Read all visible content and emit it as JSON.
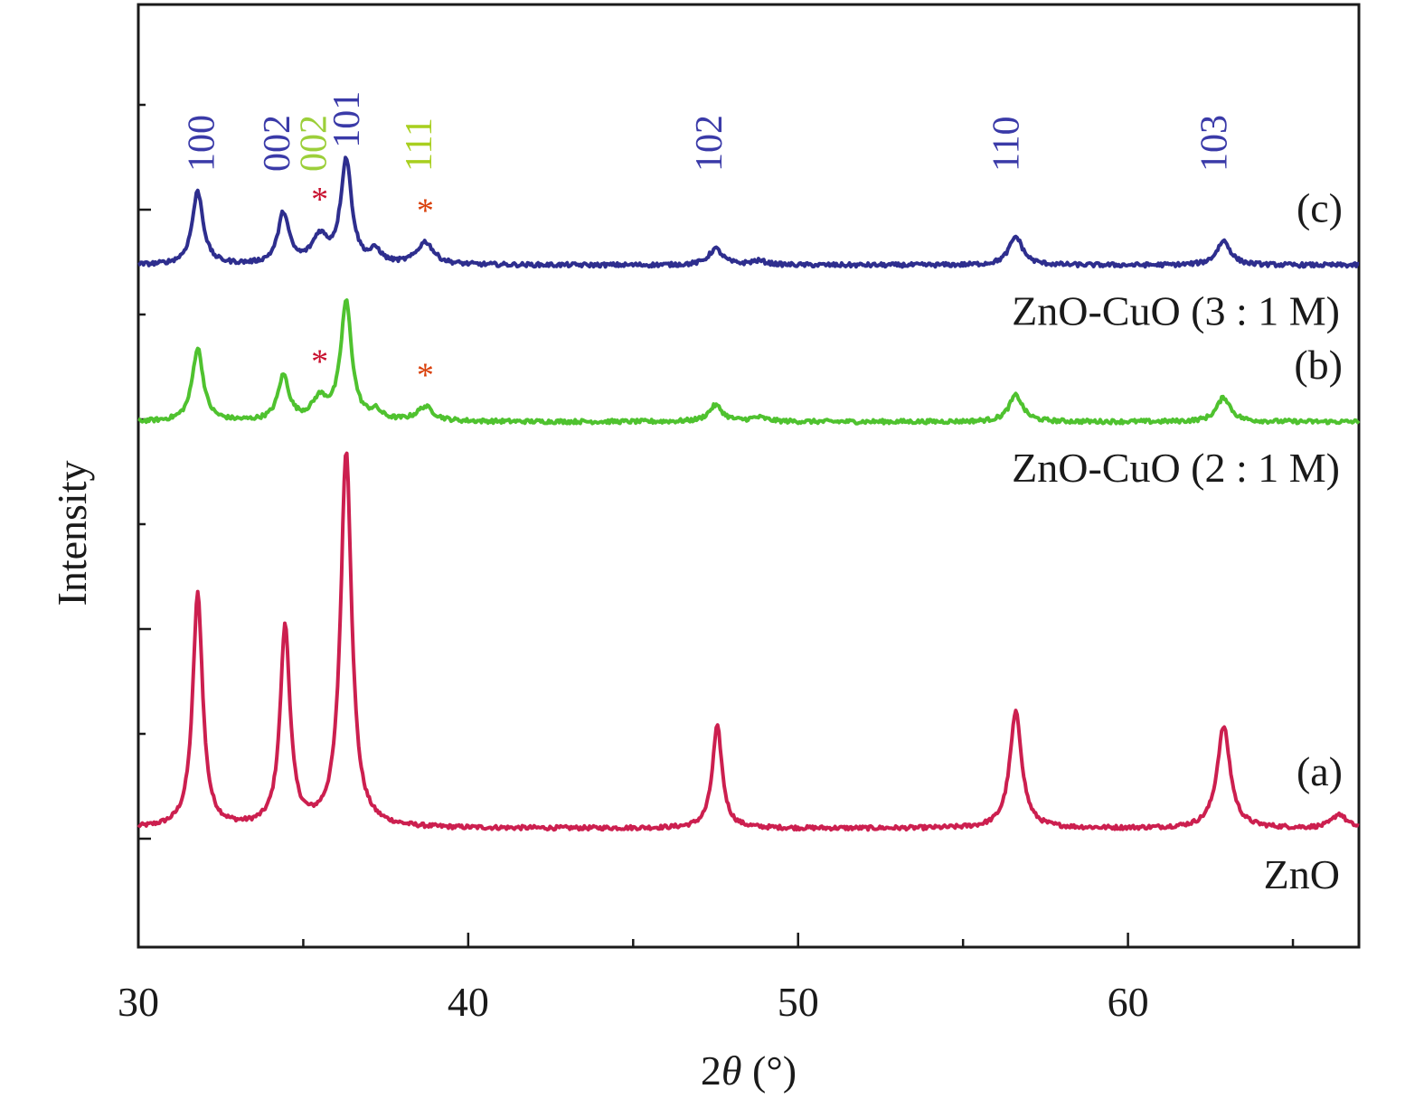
{
  "chart_data": {
    "type": "line",
    "xlabel_prefix": "2",
    "xlabel_symbol": "θ",
    "xlabel_unit": " (°)",
    "ylabel": "Intensity",
    "xlim": [
      30,
      67
    ],
    "x_ticks": [
      30,
      40,
      50,
      60
    ],
    "series": [
      {
        "name": "ZnO",
        "tag": "(a)",
        "color": "#cc1f4f",
        "offset": 0,
        "baseline": 0.05,
        "peaks": [
          [
            31.8,
            1.15,
            0.18
          ],
          [
            34.45,
            0.98,
            0.18
          ],
          [
            36.3,
            1.85,
            0.2
          ],
          [
            47.55,
            0.5,
            0.18
          ],
          [
            56.6,
            0.57,
            0.22
          ],
          [
            62.9,
            0.5,
            0.24
          ],
          [
            66.4,
            0.07,
            0.25
          ]
        ]
      },
      {
        "name": "ZnO-CuO (2 : 1 M)",
        "tag": "(b)",
        "color": "#4fc22f",
        "offset": 2.0,
        "baseline": 0.05,
        "peaks": [
          [
            31.8,
            0.36,
            0.2
          ],
          [
            34.4,
            0.22,
            0.2
          ],
          [
            35.5,
            0.1,
            0.28
          ],
          [
            36.3,
            0.58,
            0.2
          ],
          [
            37.2,
            0.04,
            0.2
          ],
          [
            38.7,
            0.07,
            0.3
          ],
          [
            47.5,
            0.08,
            0.25
          ],
          [
            48.8,
            0.02,
            0.3
          ],
          [
            56.6,
            0.13,
            0.25
          ],
          [
            62.9,
            0.12,
            0.25
          ]
        ]
      },
      {
        "name": "ZnO-CuO (3 : 1 M)",
        "tag": "(c)",
        "color": "#2e2e8e",
        "offset": 2.77,
        "baseline": 0.05,
        "peaks": [
          [
            31.8,
            0.36,
            0.2
          ],
          [
            34.4,
            0.25,
            0.2
          ],
          [
            35.5,
            0.13,
            0.28
          ],
          [
            36.3,
            0.51,
            0.2
          ],
          [
            37.2,
            0.06,
            0.2
          ],
          [
            38.7,
            0.11,
            0.3
          ],
          [
            47.5,
            0.08,
            0.25
          ],
          [
            48.8,
            0.02,
            0.3
          ],
          [
            56.6,
            0.14,
            0.25
          ],
          [
            62.9,
            0.12,
            0.25
          ]
        ]
      }
    ],
    "hkl_labels": [
      {
        "text": "100",
        "x": 31.9,
        "color": "#3a3aa8"
      },
      {
        "text": "002",
        "x": 34.2,
        "color": "#3a3aa8"
      },
      {
        "text": "002",
        "x": 35.3,
        "color": "#9ccf3a"
      },
      {
        "text": "101",
        "x": 36.3,
        "color": "#3a3aa8"
      },
      {
        "text": "111",
        "x": 38.5,
        "color": "#a8cf1f"
      },
      {
        "text": "102",
        "x": 47.3,
        "color": "#3a3aa8"
      },
      {
        "text": "110",
        "x": 56.3,
        "color": "#3a3aa8"
      },
      {
        "text": "103",
        "x": 62.6,
        "color": "#3a3aa8"
      }
    ],
    "asterisks": [
      {
        "x": 35.5,
        "series": "ZnO-CuO (3 : 1 M)",
        "color": "#c8102e"
      },
      {
        "x": 38.7,
        "series": "ZnO-CuO (3 : 1 M)",
        "color": "#d9400a"
      },
      {
        "x": 35.5,
        "series": "ZnO-CuO (2 : 1 M)",
        "color": "#c8102e"
      },
      {
        "x": 38.7,
        "series": "ZnO-CuO (2 : 1 M)",
        "color": "#d9400a"
      }
    ]
  }
}
